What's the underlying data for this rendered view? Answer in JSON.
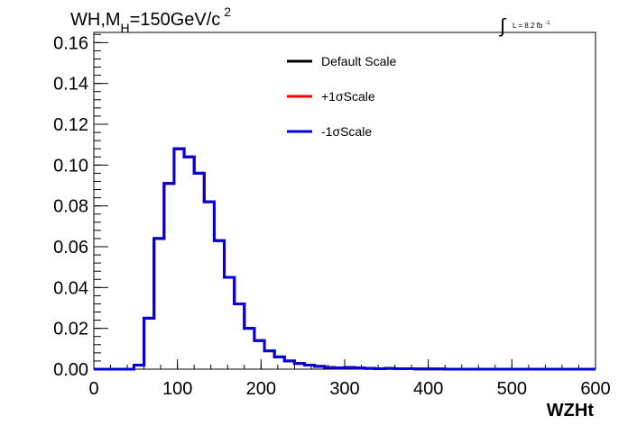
{
  "chart_data": {
    "type": "line",
    "step": true,
    "title_main": "WH,M",
    "title_sub": "H",
    "title_rest": "=150GeV/c",
    "title_sup": "2",
    "lumi_label": "L = 8.2 fb",
    "lumi_sup": "-1",
    "xlabel": "WZHt",
    "ylabel": "",
    "xlim": [
      0,
      600
    ],
    "ylim": [
      0,
      0.165
    ],
    "x_ticks": [
      "0",
      "100",
      "200",
      "300",
      "400",
      "500",
      "600"
    ],
    "y_ticks": [
      "0.00",
      "0.02",
      "0.04",
      "0.06",
      "0.08",
      "0.10",
      "0.12",
      "0.14",
      "0.16"
    ],
    "bin_width": 12,
    "legend_position": "top-center",
    "series": [
      {
        "name": "Default Scale",
        "color": "#000000",
        "values": [
          0,
          0,
          0,
          0,
          0.002,
          0.025,
          0.064,
          0.091,
          0.108,
          0.104,
          0.096,
          0.082,
          0.063,
          0.045,
          0.032,
          0.02,
          0.014,
          0.009,
          0.006,
          0.004,
          0.0028,
          0.002,
          0.0014,
          0.0008,
          0.0006,
          0.0008,
          0.0006,
          0.0004,
          0.0002,
          0.0004,
          0.0002,
          0.0002,
          0.0001,
          0.0001,
          0.0001,
          0,
          0,
          0,
          0,
          0,
          0,
          0,
          0,
          0,
          0,
          0,
          0,
          0,
          0,
          0
        ]
      },
      {
        "name": "+1σScale",
        "color": "#ff0000",
        "values": [
          0,
          0,
          0,
          0,
          0.002,
          0.025,
          0.064,
          0.091,
          0.108,
          0.104,
          0.096,
          0.082,
          0.063,
          0.045,
          0.032,
          0.02,
          0.014,
          0.009,
          0.006,
          0.004,
          0.0028,
          0.002,
          0.0014,
          0.0008,
          0.0006,
          0.0008,
          0.0006,
          0.0004,
          0.0002,
          0.0004,
          0.0002,
          0.0002,
          0.0001,
          0.0001,
          0.0001,
          0,
          0,
          0,
          0,
          0,
          0,
          0,
          0,
          0,
          0,
          0,
          0,
          0,
          0,
          0
        ]
      },
      {
        "name": "-1σScale",
        "color": "#0000dd",
        "values": [
          0,
          0,
          0,
          0,
          0.002,
          0.025,
          0.064,
          0.091,
          0.108,
          0.104,
          0.096,
          0.082,
          0.063,
          0.045,
          0.032,
          0.02,
          0.014,
          0.009,
          0.006,
          0.004,
          0.0028,
          0.002,
          0.0014,
          0.0008,
          0.0006,
          0.0008,
          0.0006,
          0.0004,
          0.0002,
          0.0004,
          0.0002,
          0.0002,
          0.0001,
          0.0001,
          0.0001,
          0,
          0,
          0,
          0,
          0,
          0,
          0,
          0,
          0,
          0,
          0,
          0,
          0,
          0,
          0
        ]
      }
    ]
  }
}
